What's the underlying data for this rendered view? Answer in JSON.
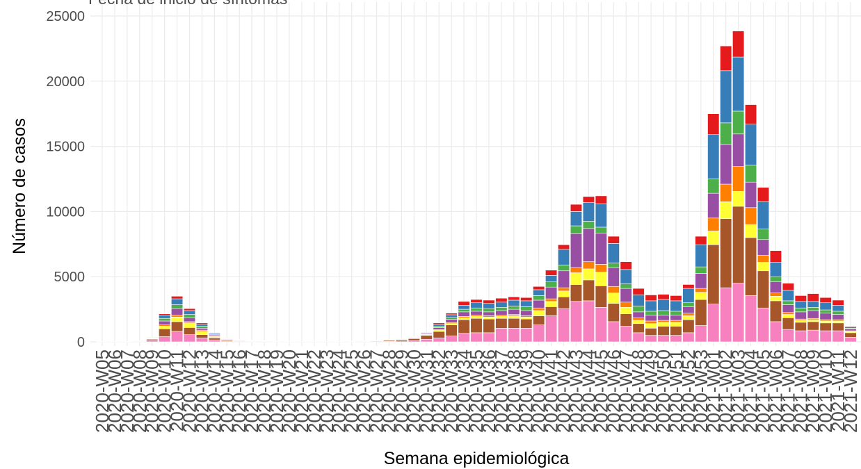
{
  "chart_data": {
    "type": "stacked_bar",
    "title": "Fecha de inicio de síntomas",
    "x_label": "Semana epidemiológica",
    "y_label": "Número de casos",
    "categories": [
      "2020-W05",
      "2020-W06",
      "2020-W07",
      "2020-W08",
      "2020-W09",
      "2020-W10",
      "2020-W11",
      "2020-W12",
      "2020-W13",
      "2020-W14",
      "2020-W15",
      "2020-W16",
      "2020-W17",
      "2020-W18",
      "2020-W19",
      "2020-W20",
      "2020-W21",
      "2020-W22",
      "2020-W23",
      "2020-W24",
      "2020-W25",
      "2020-W26",
      "2020-W27",
      "2020-W28",
      "2020-W29",
      "2020-W30",
      "2020-W31",
      "2020-W32",
      "2020-W33",
      "2020-W34",
      "2020-W35",
      "2020-W36",
      "2020-W37",
      "2020-W38",
      "2020-W39",
      "2020-W40",
      "2020-W41",
      "2020-W42",
      "2020-W43",
      "2020-W44",
      "2020-W45",
      "2020-W46",
      "2020-W47",
      "2020-W48",
      "2020-W49",
      "2020-W50",
      "2020-W51",
      "2020-W52",
      "2020-W53",
      "2021-W01",
      "2021-W02",
      "2021-W03",
      "2021-W04",
      "2021-W05",
      "2021-W06",
      "2021-W07",
      "2021-W08",
      "2021-W09",
      "2021-W10",
      "2021-W11",
      "2021-W12"
    ],
    "series": [
      {
        "color": "#F781BF",
        "values": [
          5,
          5,
          10,
          20,
          100,
          400,
          800,
          550,
          300,
          150,
          60,
          40,
          20,
          20,
          10,
          10,
          5,
          5,
          5,
          10,
          10,
          20,
          30,
          50,
          70,
          100,
          200,
          300,
          450,
          650,
          700,
          700,
          1050,
          1050,
          1050,
          1300,
          2000,
          2550,
          3100,
          3150,
          2650,
          1550,
          1200,
          700,
          500,
          500,
          500,
          700,
          1250,
          2900,
          4150,
          4500,
          3550,
          2600,
          1550,
          950,
          850,
          900,
          850,
          850,
          350
        ]
      },
      {
        "color": "#A65628",
        "values": [
          5,
          10,
          10,
          20,
          100,
          600,
          750,
          550,
          250,
          150,
          70,
          40,
          30,
          20,
          10,
          10,
          10,
          10,
          10,
          10,
          20,
          30,
          40,
          70,
          100,
          150,
          300,
          500,
          850,
          1050,
          1100,
          1050,
          750,
          750,
          700,
          700,
          700,
          900,
          1300,
          1600,
          1650,
          1400,
          950,
          700,
          550,
          700,
          700,
          1000,
          2000,
          4550,
          5300,
          5900,
          4450,
          2850,
          1600,
          900,
          650,
          650,
          600,
          600,
          350
        ]
      },
      {
        "color": "#FFFF33",
        "values": [
          2,
          3,
          5,
          10,
          30,
          200,
          350,
          350,
          250,
          100,
          40,
          20,
          10,
          10,
          10,
          5,
          3,
          3,
          3,
          5,
          5,
          5,
          10,
          15,
          20,
          25,
          40,
          80,
          100,
          150,
          150,
          150,
          150,
          200,
          150,
          400,
          400,
          450,
          900,
          850,
          1050,
          800,
          500,
          250,
          350,
          300,
          300,
          300,
          550,
          1050,
          1300,
          1150,
          1000,
          650,
          350,
          250,
          150,
          150,
          150,
          150,
          100
        ]
      },
      {
        "color": "#FF7F00",
        "values": [
          2,
          2,
          3,
          5,
          20,
          100,
          150,
          100,
          100,
          50,
          20,
          10,
          10,
          10,
          5,
          3,
          2,
          2,
          2,
          3,
          5,
          5,
          5,
          10,
          10,
          15,
          30,
          60,
          80,
          100,
          100,
          100,
          100,
          100,
          100,
          200,
          200,
          250,
          400,
          550,
          600,
          500,
          400,
          200,
          200,
          150,
          150,
          200,
          300,
          1000,
          1350,
          1900,
          1300,
          550,
          250,
          150,
          100,
          100,
          100,
          100,
          50
        ]
      },
      {
        "color": "#984EA3",
        "values": [
          2,
          3,
          4,
          10,
          40,
          300,
          500,
          300,
          150,
          80,
          40,
          20,
          10,
          10,
          10,
          5,
          3,
          3,
          3,
          5,
          5,
          10,
          10,
          20,
          30,
          40,
          60,
          150,
          250,
          350,
          300,
          300,
          350,
          400,
          400,
          600,
          900,
          1300,
          2600,
          2550,
          2400,
          1450,
          1050,
          450,
          450,
          400,
          400,
          500,
          1150,
          1900,
          3050,
          2500,
          1950,
          1200,
          850,
          600,
          550,
          600,
          500,
          400,
          150
        ]
      },
      {
        "color": "#4DAF4A",
        "values": [
          2,
          3,
          3,
          5,
          20,
          200,
          300,
          250,
          150,
          60,
          30,
          20,
          20,
          10,
          5,
          3,
          3,
          3,
          3,
          3,
          5,
          5,
          10,
          10,
          15,
          25,
          40,
          100,
          150,
          200,
          250,
          250,
          250,
          250,
          300,
          350,
          400,
          450,
          600,
          550,
          450,
          350,
          350,
          450,
          300,
          350,
          300,
          300,
          500,
          1100,
          1650,
          1750,
          1300,
          800,
          400,
          300,
          300,
          250,
          250,
          250,
          50
        ]
      },
      {
        "color": "#377EB8",
        "values": [
          1,
          2,
          3,
          5,
          30,
          250,
          450,
          300,
          150,
          80,
          30,
          20,
          10,
          10,
          5,
          2,
          2,
          2,
          2,
          2,
          5,
          10,
          10,
          15,
          20,
          25,
          50,
          150,
          200,
          300,
          400,
          400,
          400,
          450,
          450,
          450,
          500,
          1200,
          1100,
          1450,
          1800,
          1500,
          1100,
          850,
          800,
          850,
          800,
          1100,
          1700,
          3400,
          4000,
          4150,
          3150,
          2100,
          1100,
          800,
          500,
          450,
          550,
          450,
          100
        ]
      },
      {
        "color": "#E41A1C",
        "values": [
          1,
          2,
          2,
          5,
          10,
          100,
          200,
          150,
          100,
          30,
          10,
          10,
          10,
          10,
          5,
          2,
          2,
          2,
          2,
          2,
          5,
          5,
          5,
          10,
          15,
          20,
          30,
          110,
          120,
          300,
          250,
          250,
          300,
          250,
          250,
          250,
          400,
          350,
          550,
          450,
          600,
          550,
          600,
          500,
          450,
          400,
          400,
          300,
          650,
          1600,
          1900,
          2000,
          1500,
          1100,
          900,
          550,
          450,
          600,
          400,
          400,
          50
        ]
      }
    ],
    "ylim": [
      0,
      25000
    ],
    "yticks": [
      0,
      5000,
      10000,
      15000,
      20000,
      25000
    ],
    "grid": true
  }
}
